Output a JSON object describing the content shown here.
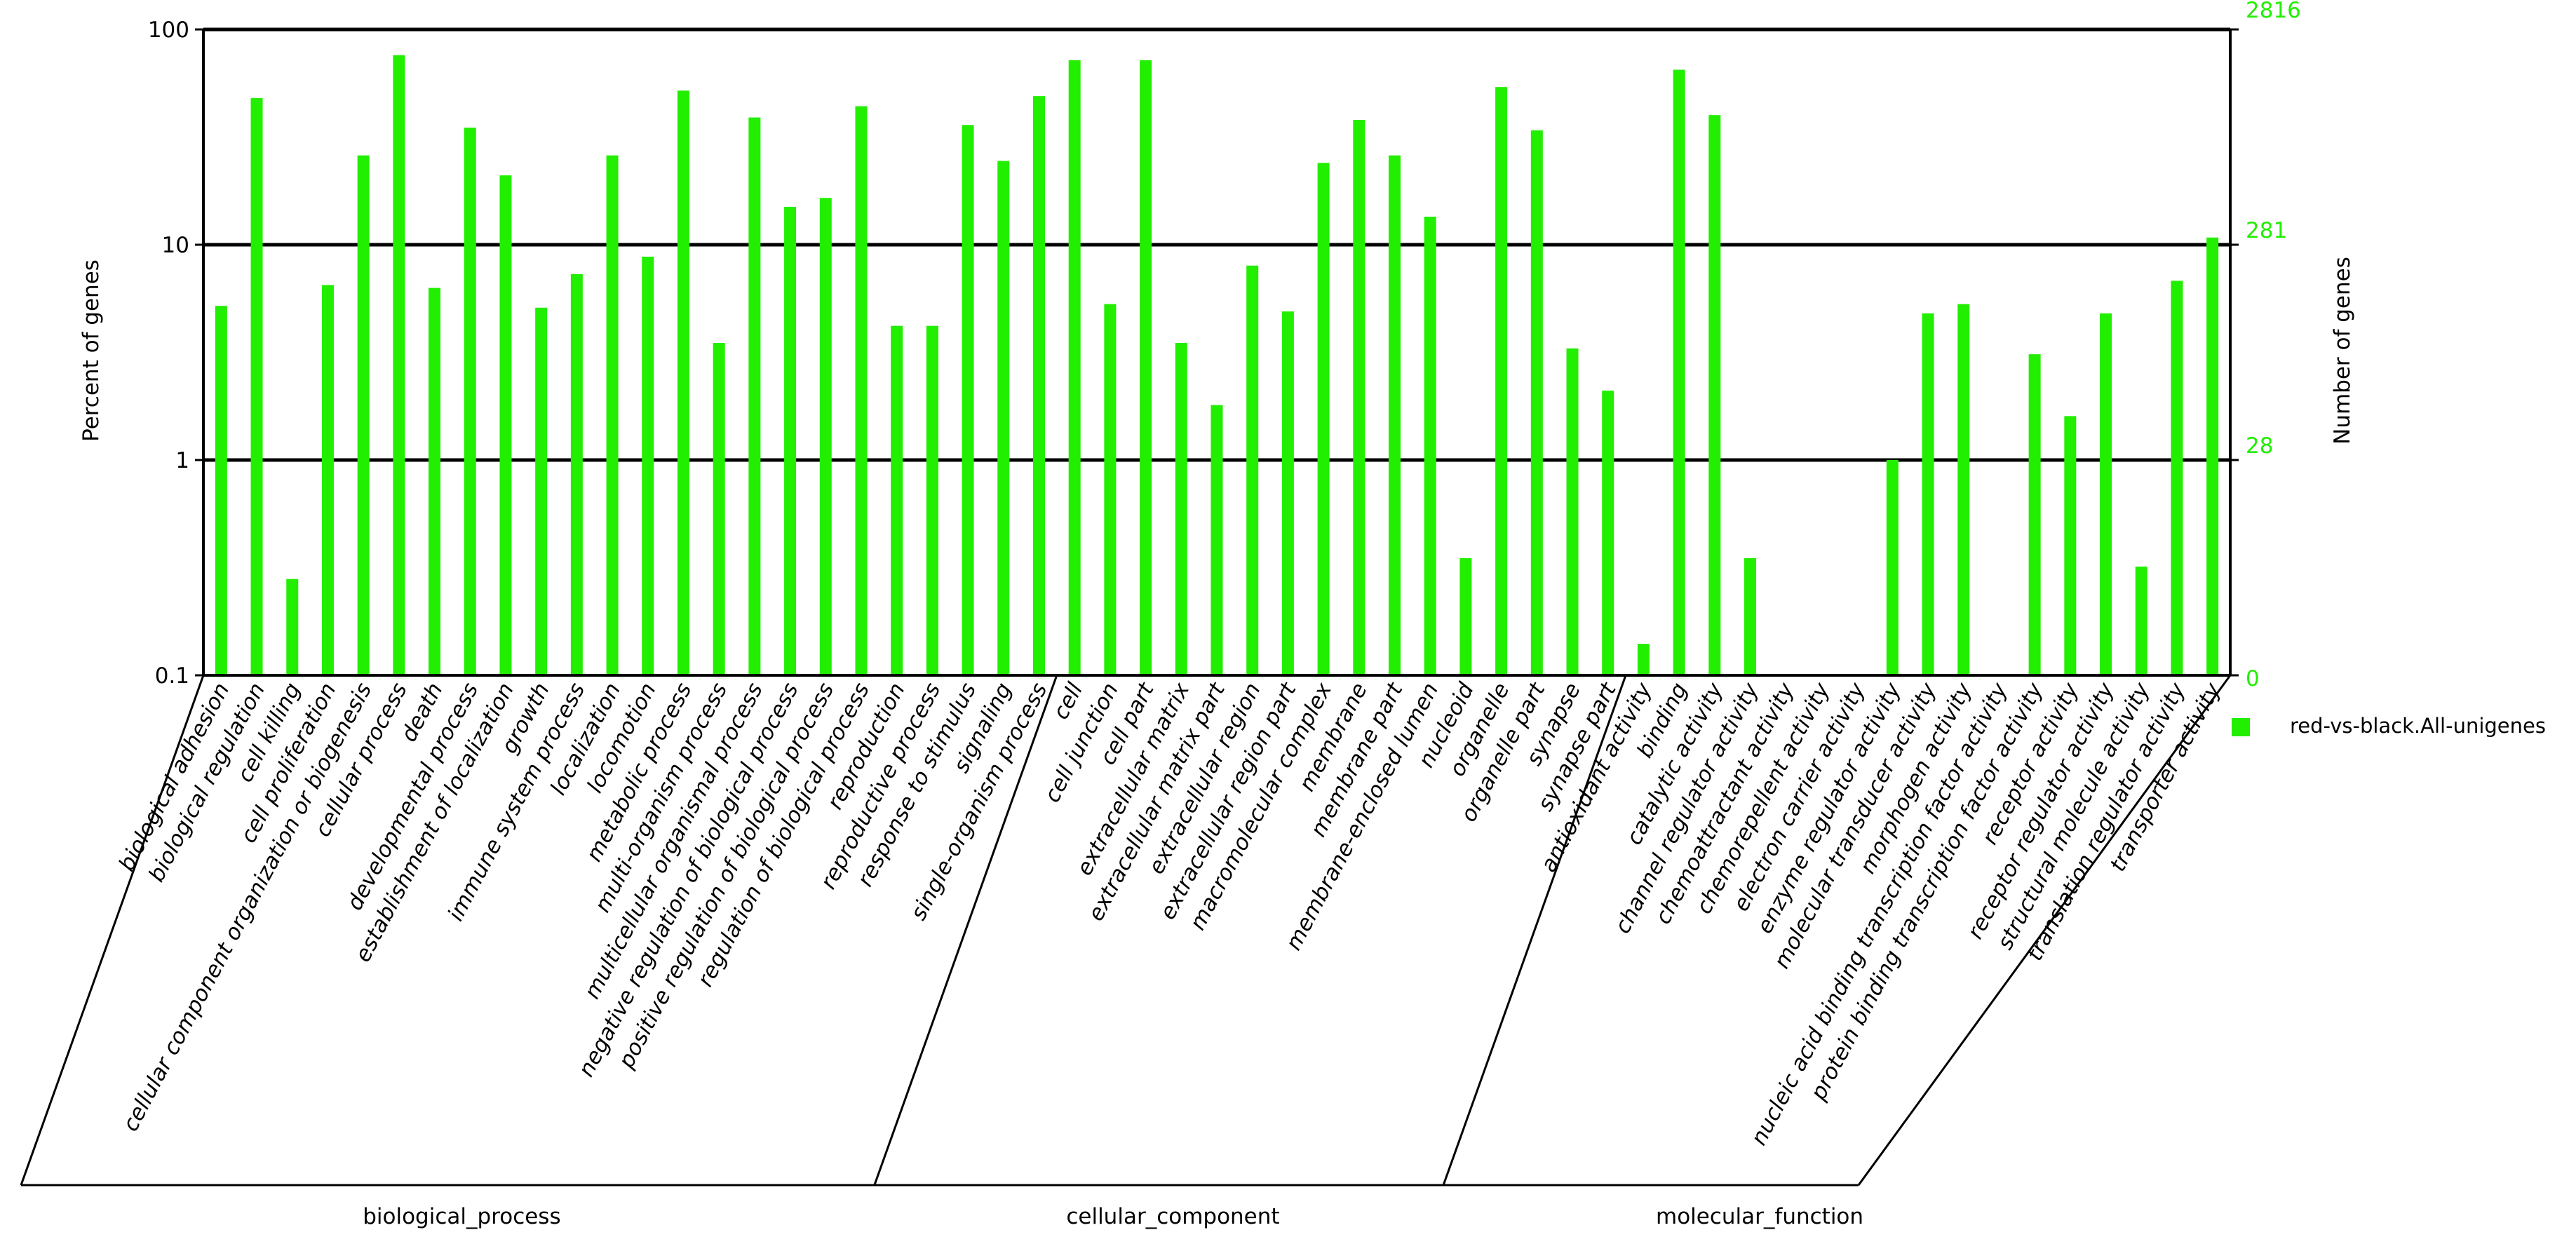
{
  "chart_data": {
    "type": "bar",
    "ylabel": "Percent of genes",
    "y2label": "Number of genes",
    "yscale": "log",
    "ylim": [
      0.1,
      100
    ],
    "left_ticks": [
      "100",
      "10",
      "1",
      "0.1"
    ],
    "right_ticks": [
      "2816",
      "281",
      "28",
      "0"
    ],
    "grid": "horizontal at major ticks",
    "legend_position": "right",
    "colors": {
      "bar": "#22ee00",
      "right_axis": "#22ee00",
      "axis": "#000000"
    },
    "series": [
      {
        "name": "red-vs-black.All-unigenes",
        "values": [
          5.2,
          48,
          0.28,
          6.5,
          26,
          76,
          6.3,
          35,
          21,
          5.1,
          7.3,
          26,
          8.8,
          52,
          3.5,
          39,
          15,
          16.5,
          44,
          4.2,
          4.2,
          36,
          24.5,
          49,
          72,
          5.3,
          72,
          3.5,
          1.8,
          8,
          4.9,
          24,
          38,
          26,
          13.5,
          0.35,
          54,
          34,
          3.3,
          2.1,
          0.14,
          65,
          40,
          0.35,
          null,
          null,
          null,
          1.0,
          4.8,
          5.3,
          null,
          3.1,
          1.6,
          4.8,
          0.32,
          6.8,
          10.8
        ]
      }
    ],
    "categories": [
      "biological adhesion",
      "biological regulation",
      "cell killing",
      "cell proliferation",
      "cellular component organization or biogenesis",
      "cellular process",
      "death",
      "developmental process",
      "establishment of localization",
      "growth",
      "immune system process",
      "localization",
      "locomotion",
      "metabolic process",
      "multi-organism process",
      "multicellular organismal process",
      "negative regulation of biological process",
      "positive regulation of biological process",
      "regulation of biological process",
      "reproduction",
      "reproductive process",
      "response to stimulus",
      "signaling",
      "single-organism process",
      "cell",
      "cell junction",
      "cell part",
      "extracellular matrix",
      "extracellular matrix part",
      "extracellular region",
      "extracellular region part",
      "macromolecular complex",
      "membrane",
      "membrane part",
      "membrane-enclosed lumen",
      "nucleoid",
      "organelle",
      "organelle part",
      "synapse",
      "synapse part",
      "antioxidant activity",
      "binding",
      "catalytic activity",
      "channel regulator activity",
      "chemoattractant activity",
      "chemorepellent activity",
      "electron carrier activity",
      "enzyme regulator activity",
      "molecular transducer activity",
      "morphogen activity",
      "nucleic acid binding transcription factor activity",
      "protein binding transcription factor activity",
      "receptor activity",
      "receptor regulator activity",
      "structural molecule activity",
      "translation regulator activity",
      "transporter activity"
    ],
    "groups": [
      {
        "name": "biological_process",
        "count": 24
      },
      {
        "name": "cellular_component",
        "count": 16
      },
      {
        "name": "molecular_function",
        "count": 17
      }
    ]
  }
}
